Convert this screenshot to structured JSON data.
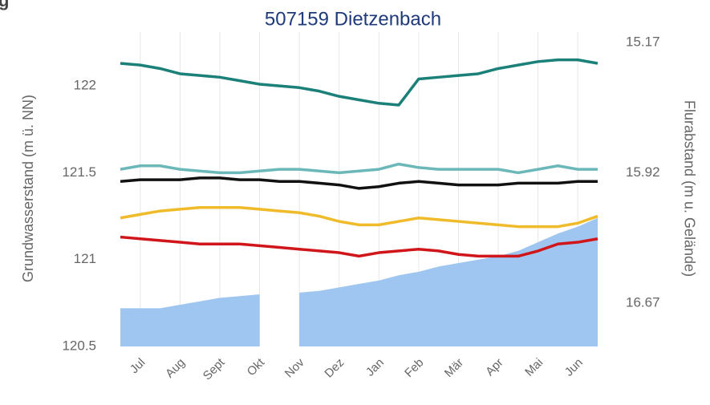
{
  "corner_text": "g",
  "chart_data": {
    "type": "line",
    "title": "507159 Dietzenbach",
    "ylabel": "Grundwasserstand (m ü. NN)",
    "y2label": "Flurabstand (m u. Gelände)",
    "categories": [
      null,
      "Jul",
      null,
      "Aug",
      null,
      "Sept",
      null,
      "Okt",
      null,
      "Nov",
      null,
      "Dez",
      null,
      "Jan",
      null,
      "Feb",
      null,
      "Mär",
      null,
      "Apr",
      null,
      "Mai",
      null,
      "Jun",
      null
    ],
    "ylim": [
      120.5,
      122.31
    ],
    "yticks": [
      120.5,
      121,
      121.5,
      122
    ],
    "y2lim": [
      16.92,
      15.11
    ],
    "y2ticks": [
      15.17,
      15.92,
      16.67
    ],
    "grid": true,
    "series": [
      {
        "color": "#9ec6f0",
        "area": true,
        "values": [
          120.72,
          120.72,
          120.72,
          120.74,
          120.76,
          120.78,
          120.79,
          120.8,
          null,
          120.81,
          120.82,
          120.84,
          120.86,
          120.88,
          120.91,
          120.93,
          120.96,
          120.98,
          121.0,
          121.02,
          121.05,
          121.1,
          121.15,
          121.19,
          121.24
        ]
      },
      {
        "color": "#1a8078",
        "values": [
          122.13,
          122.12,
          122.1,
          122.07,
          122.06,
          122.05,
          122.03,
          122.01,
          122.0,
          121.99,
          121.97,
          121.94,
          121.92,
          121.9,
          121.89,
          122.04,
          122.05,
          122.06,
          122.07,
          122.1,
          122.12,
          122.14,
          122.15,
          122.15,
          122.13
        ]
      },
      {
        "color": "#6cb8b8",
        "values": [
          121.52,
          121.54,
          121.54,
          121.52,
          121.51,
          121.5,
          121.5,
          121.51,
          121.52,
          121.52,
          121.51,
          121.5,
          121.51,
          121.52,
          121.55,
          121.53,
          121.52,
          121.52,
          121.52,
          121.52,
          121.5,
          121.52,
          121.54,
          121.52,
          121.52
        ]
      },
      {
        "color": "#111111",
        "values": [
          121.45,
          121.46,
          121.46,
          121.46,
          121.47,
          121.47,
          121.46,
          121.46,
          121.45,
          121.45,
          121.44,
          121.43,
          121.41,
          121.42,
          121.44,
          121.45,
          121.44,
          121.43,
          121.43,
          121.43,
          121.44,
          121.44,
          121.44,
          121.45,
          121.45
        ]
      },
      {
        "color": "#f0bb2a",
        "values": [
          121.24,
          121.26,
          121.28,
          121.29,
          121.3,
          121.3,
          121.3,
          121.29,
          121.28,
          121.27,
          121.25,
          121.22,
          121.2,
          121.2,
          121.22,
          121.24,
          121.23,
          121.22,
          121.21,
          121.2,
          121.19,
          121.19,
          121.19,
          121.21,
          121.25
        ]
      },
      {
        "color": "#d0161a",
        "values": [
          121.13,
          121.12,
          121.11,
          121.1,
          121.09,
          121.09,
          121.09,
          121.08,
          121.07,
          121.06,
          121.05,
          121.04,
          121.02,
          121.04,
          121.05,
          121.06,
          121.05,
          121.03,
          121.02,
          121.02,
          121.02,
          121.05,
          121.09,
          121.1,
          121.12
        ]
      }
    ]
  }
}
